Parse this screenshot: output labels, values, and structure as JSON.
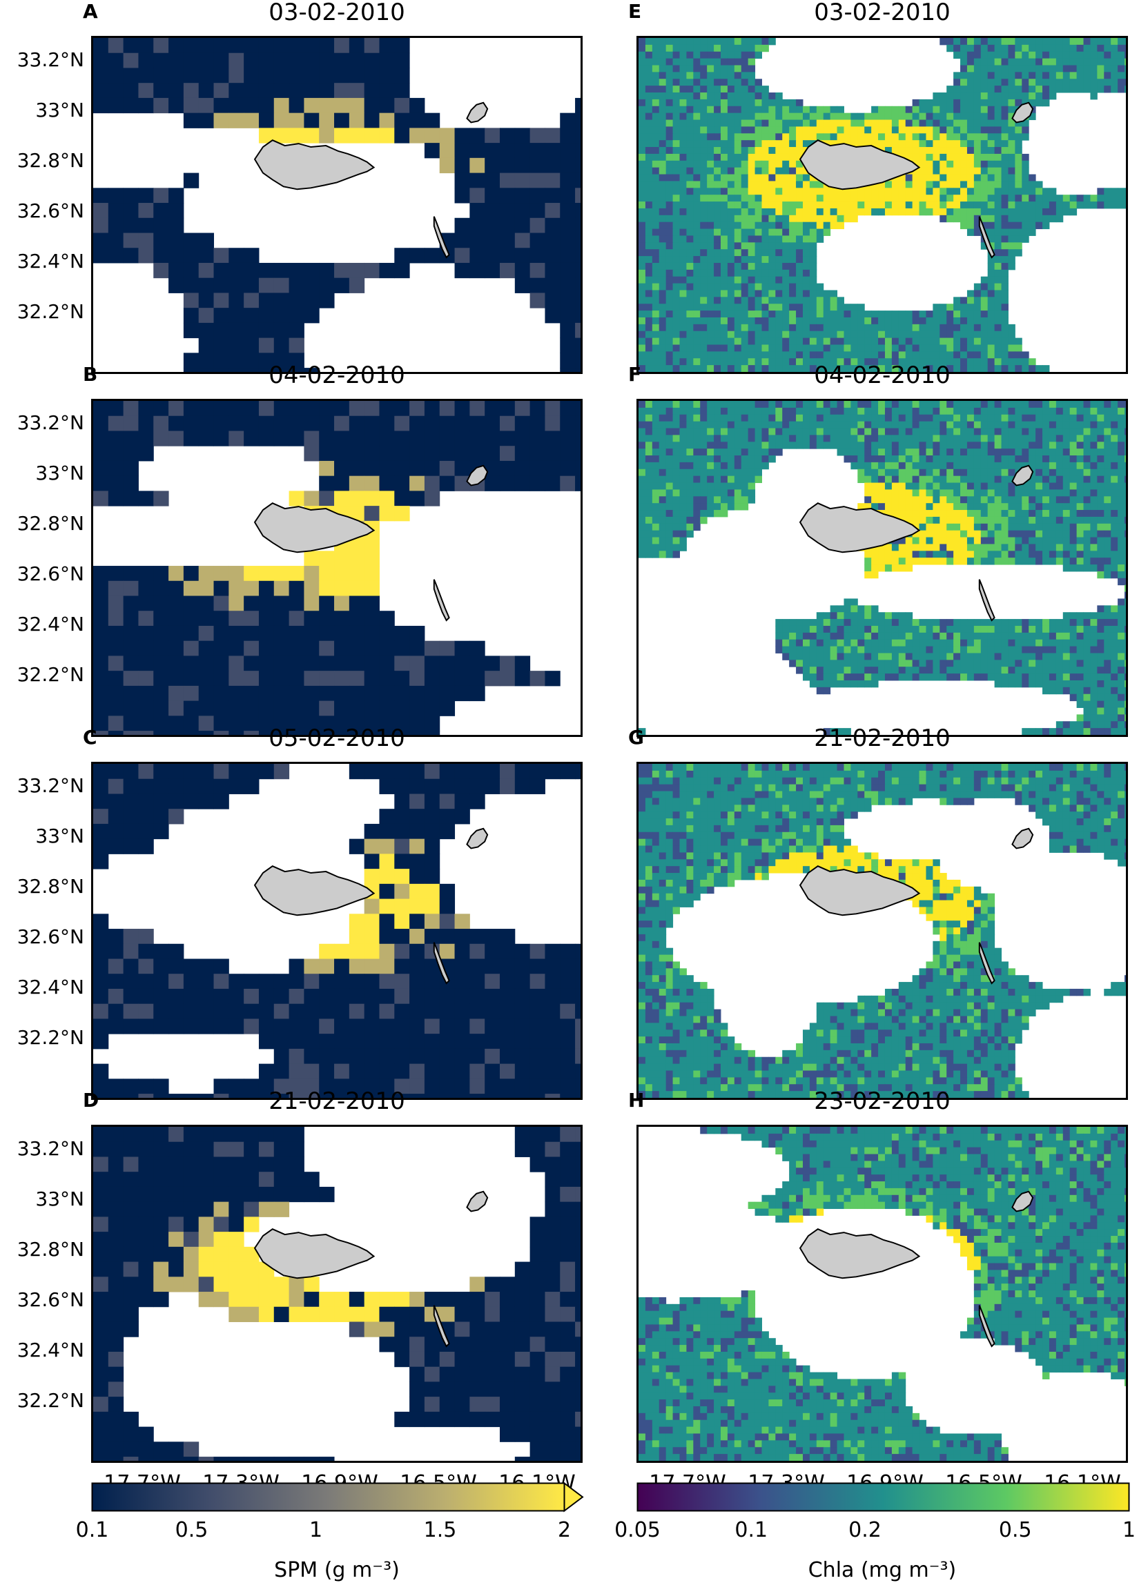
{
  "latitude_ticks": [
    "33.2°N",
    "33°N",
    "32.8°N",
    "32.6°N",
    "32.4°N",
    "32.2°N"
  ],
  "longitude_ticks": [
    "17.7°W",
    "17.3°W",
    "16.9°W",
    "16.5°W",
    "16.1°W"
  ],
  "panels_left": [
    {
      "letter": "A",
      "date": "03-02-2010"
    },
    {
      "letter": "B",
      "date": "04-02-2010"
    },
    {
      "letter": "C",
      "date": "05-02-2010"
    },
    {
      "letter": "D",
      "date": "21-02-2010"
    }
  ],
  "panels_right": [
    {
      "letter": "E",
      "date": "03-02-2010"
    },
    {
      "letter": "F",
      "date": "04-02-2010"
    },
    {
      "letter": "G",
      "date": "21-02-2010"
    },
    {
      "letter": "H",
      "date": "23-02-2010"
    }
  ],
  "colorbars": {
    "spm": {
      "label": "SPM (g m⁻³)",
      "ticks": [
        "0.1",
        "0.5",
        "1",
        "1.5",
        "2"
      ],
      "colormap": "cividis",
      "extend": "max",
      "colors": [
        "#00204d",
        "#414d6b",
        "#7c7b78",
        "#bcaf6f",
        "#ffe945"
      ]
    },
    "chla": {
      "label": "Chla (mg m⁻³)",
      "ticks": [
        "0.05",
        "0.1",
        "0.2",
        "0.5",
        "1"
      ],
      "colormap": "viridis",
      "scale": "log",
      "colors": [
        "#440154",
        "#3b528b",
        "#21908d",
        "#5dc963",
        "#fde725"
      ]
    }
  },
  "colors": {
    "land": "#cccccc",
    "no_data": "#ffffff",
    "coastline": "#000000"
  }
}
